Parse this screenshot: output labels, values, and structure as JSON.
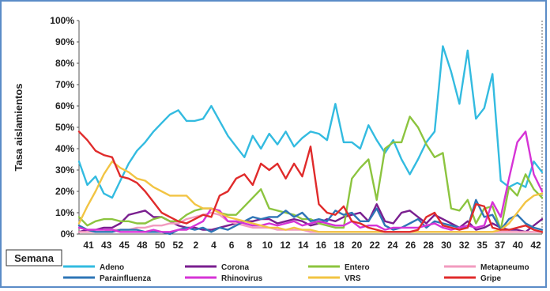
{
  "chart_data": {
    "type": "line",
    "ylabel": "Tasa aislamientos",
    "xlabel": "Semana",
    "ylim": [
      0,
      100
    ],
    "y_ticks": [
      "0%",
      "10%",
      "20%",
      "30%",
      "40%",
      "50%",
      "60%",
      "70%",
      "80%",
      "90%",
      "100%"
    ],
    "x_tick_labels": [
      "41",
      "43",
      "45",
      "48",
      "50",
      "52",
      "2",
      "4",
      "6",
      "8",
      "10",
      "12",
      "14",
      "16",
      "18",
      "20",
      "22",
      "24",
      "26",
      "28",
      "30",
      "32",
      "35",
      "37",
      "40",
      "42"
    ],
    "legend_placement": "bottom",
    "grid": false,
    "series": [
      {
        "name": "Adeno",
        "color": "#33bbe0",
        "values": [
          34,
          23,
          27,
          19,
          17,
          25,
          33,
          39,
          43,
          48,
          52,
          56,
          58,
          53,
          53,
          54,
          60,
          53,
          46,
          41,
          36,
          46,
          40,
          47,
          42,
          48,
          41,
          45,
          48,
          47,
          44,
          61,
          43,
          43,
          40,
          51,
          44,
          38,
          44,
          35,
          28,
          35,
          43,
          48,
          88,
          76,
          61,
          86,
          54,
          59,
          75,
          25,
          22,
          24,
          22,
          34,
          29
        ]
      },
      {
        "name": "Corona",
        "color": "#7a1f8f",
        "values": [
          1,
          2,
          2,
          3,
          3,
          5,
          9,
          10,
          11,
          8,
          8,
          6,
          4,
          3,
          3,
          2,
          2,
          3,
          4,
          5,
          6,
          6,
          7,
          7,
          5,
          6,
          7,
          6,
          4,
          5,
          7,
          6,
          8,
          9,
          10,
          6,
          14,
          6,
          5,
          10,
          11,
          8,
          5,
          9,
          7,
          5,
          3,
          6,
          2,
          3,
          5,
          3,
          2,
          2,
          1,
          4,
          7
        ]
      },
      {
        "name": "Entero",
        "color": "#8cc43f",
        "values": [
          8,
          4,
          6,
          7,
          7,
          6,
          6,
          5,
          5,
          7,
          8,
          6,
          6,
          9,
          11,
          12,
          12,
          10,
          9,
          9,
          13,
          17,
          21,
          12,
          11,
          10,
          9,
          7,
          7,
          5,
          4,
          3,
          3,
          26,
          31,
          35,
          16,
          40,
          43,
          43,
          55,
          50,
          42,
          36,
          38,
          12,
          11,
          16,
          5,
          12,
          13,
          2,
          22,
          18,
          28,
          21,
          17
        ]
      },
      {
        "name": "Metapneumo",
        "color": "#f29bbf",
        "values": [
          1,
          1,
          1,
          1,
          2,
          2,
          2,
          3,
          3,
          4,
          4,
          5,
          5,
          7,
          8,
          9,
          10,
          9,
          6,
          5,
          4,
          3,
          3,
          3,
          2,
          2,
          2,
          2,
          1,
          1,
          1,
          1,
          1,
          1,
          1,
          1,
          1,
          1,
          1,
          1,
          1,
          1,
          1,
          1,
          1,
          1,
          1,
          1,
          1,
          1,
          1,
          1,
          1,
          1,
          1,
          1,
          1
        ]
      },
      {
        "name": "Parainfluenza",
        "color": "#2e75b6",
        "values": [
          4,
          2,
          1,
          1,
          1,
          2,
          2,
          2,
          1,
          1,
          1,
          0,
          2,
          3,
          2,
          3,
          1,
          3,
          2,
          4,
          6,
          8,
          7,
          8,
          8,
          11,
          8,
          10,
          6,
          7,
          6,
          11,
          9,
          10,
          6,
          6,
          12,
          4,
          2,
          3,
          5,
          7,
          3,
          6,
          5,
          4,
          3,
          3,
          16,
          8,
          9,
          2,
          7,
          9,
          5,
          3,
          2
        ]
      },
      {
        "name": "Rhinovirus",
        "color": "#d633d6",
        "values": [
          3,
          2,
          2,
          2,
          2,
          1,
          1,
          1,
          1,
          2,
          1,
          1,
          2,
          2,
          4,
          6,
          12,
          11,
          6,
          6,
          5,
          4,
          4,
          5,
          4,
          5,
          6,
          4,
          5,
          6,
          5,
          4,
          4,
          6,
          3,
          4,
          4,
          2,
          3,
          3,
          3,
          3,
          4,
          5,
          3,
          2,
          3,
          4,
          3,
          4,
          15,
          8,
          26,
          43,
          48,
          28,
          20
        ]
      },
      {
        "name": "VRS",
        "color": "#f2c443",
        "values": [
          5,
          13,
          20,
          28,
          34,
          31,
          29,
          26,
          25,
          22,
          20,
          18,
          18,
          18,
          14,
          12,
          12,
          10,
          8,
          7,
          6,
          5,
          4,
          3,
          3,
          2,
          3,
          2,
          2,
          1,
          1,
          1,
          1,
          1,
          1,
          1,
          1,
          1,
          1,
          1,
          1,
          1,
          1,
          1,
          1,
          1,
          1,
          1,
          1,
          1,
          1,
          2,
          5,
          10,
          15,
          18,
          19
        ]
      },
      {
        "name": "Gripe",
        "color": "#e02b2b",
        "values": [
          48,
          44,
          39,
          37,
          36,
          27,
          26,
          24,
          20,
          15,
          10,
          8,
          6,
          5,
          7,
          9,
          8,
          18,
          20,
          26,
          28,
          23,
          33,
          30,
          33,
          26,
          33,
          27,
          41,
          14,
          10,
          9,
          13,
          6,
          5,
          3,
          2,
          1,
          1,
          1,
          1,
          2,
          8,
          10,
          4,
          3,
          2,
          3,
          14,
          13,
          3,
          2,
          2,
          3,
          4,
          2,
          1
        ]
      }
    ]
  }
}
